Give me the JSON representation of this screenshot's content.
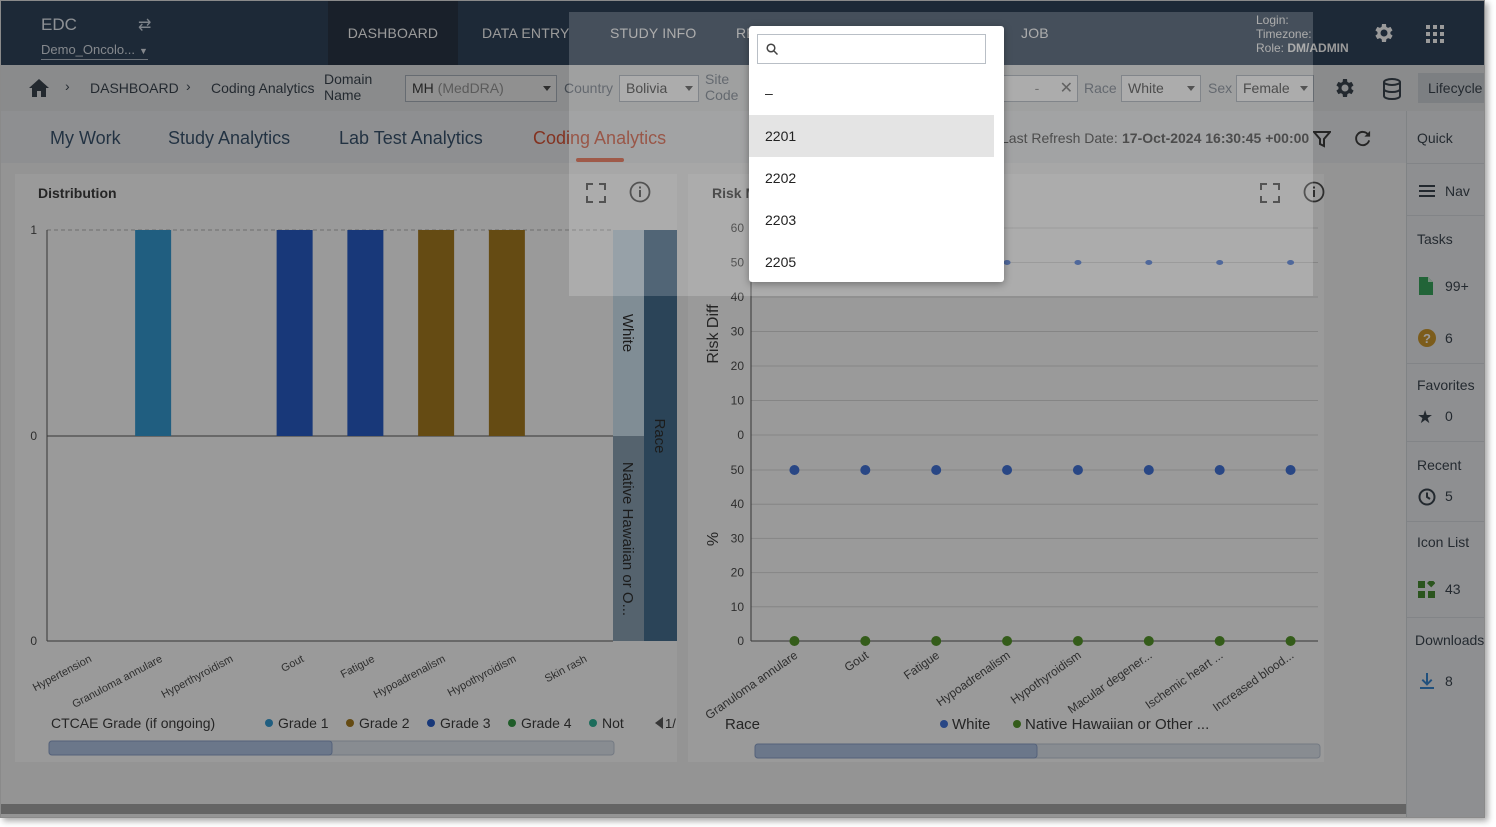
{
  "app": {
    "title": "EDC",
    "study": "Demo_Oncolo..."
  },
  "nav": {
    "tabs": [
      "DASHBOARD",
      "DATA ENTRY",
      "STUDY INFO",
      "RE",
      "JOB"
    ]
  },
  "user": {
    "login_label": "Login:",
    "timezone_label": "Timezone:",
    "role_label": "Role:",
    "role_value": "DM/ADMIN"
  },
  "breadcrumb": {
    "home": "DASHBOARD",
    "current": "Coding Analytics"
  },
  "filters": {
    "domain_label_1": "Domain",
    "domain_label_2": "Name",
    "domain_value": "MH",
    "domain_sub": "(MedDRA)",
    "country_label": "Country",
    "country_value": "Bolivia",
    "site_label_1": "Site",
    "site_label_2": "Code",
    "date_placeholder": "-",
    "race_label": "Race",
    "race_value": "White",
    "sex_label": "Sex",
    "sex_value": "Female",
    "lifecycle": "Lifecycle"
  },
  "subtabs": [
    "My Work",
    "Study Analytics",
    "Lab Test Analytics",
    "Coding Analytics"
  ],
  "refresh": {
    "label": "Last Refresh Date:",
    "value": "17-Oct-2024 16:30:45 +00:00"
  },
  "rail": {
    "quick": "Quick",
    "nav": "Nav",
    "tasks": "Tasks",
    "tasks_count": "99+",
    "help_count": "6",
    "favorites": "Favorites",
    "favorites_count": "0",
    "recent": "Recent",
    "recent_count": "5",
    "icon_list": "Icon List",
    "icon_list_count": "43",
    "downloads": "Downloads",
    "downloads_count": "8"
  },
  "dropdown": {
    "items": [
      "–",
      "2201",
      "2202",
      "2203",
      "2205"
    ],
    "selected": "2201"
  },
  "colors": {
    "grade1": "#1a8fcf",
    "grade2": "#9b6a00",
    "grade3": "#0a46c0",
    "grade4": "#178a2a",
    "not": "#12a888",
    "white": "#2a62d8",
    "nhpi": "#3f8a0e",
    "accent": "#e0431c"
  },
  "chart_data": [
    {
      "type": "bar",
      "title": "Distribution",
      "categories": [
        "Hypertension",
        "Granuloma annulare",
        "Hyperthyroidism",
        "Gout",
        "Fatigue",
        "Hypoadrenalism",
        "Hypothyroidism",
        "Skin rash"
      ],
      "series": [
        {
          "name": "Grade 1",
          "values": [
            0,
            1,
            0,
            0,
            0,
            0,
            0,
            0
          ]
        },
        {
          "name": "Grade 2",
          "values": [
            0,
            0,
            0,
            0,
            0,
            1,
            1,
            0
          ]
        },
        {
          "name": "Grade 3",
          "values": [
            0,
            0,
            0,
            1,
            1,
            0,
            0,
            0
          ]
        },
        {
          "name": "Grade 4",
          "values": [
            0,
            0,
            0,
            0,
            0,
            0,
            0,
            0
          ]
        },
        {
          "name": "Not",
          "values": [
            0,
            0,
            0,
            0,
            0,
            0,
            0,
            0
          ]
        }
      ],
      "upper_ticks": [
        "1",
        "0"
      ],
      "lower_ticks": [
        "0"
      ],
      "legend_title": "CTCAE Grade (if ongoing)",
      "legend_page": "1/",
      "facet_title": "Race",
      "facets": [
        "White",
        "Native Hawaiian or O..."
      ]
    },
    {
      "type": "scatter",
      "title": "Risk M",
      "categories": [
        "Granuloma annulare",
        "Gout",
        "Fatigue",
        "Hypoadrenalism",
        "Hypothyroidism",
        "Macular degener...",
        "Ischemic heart ...",
        "Increased blood..."
      ],
      "upper": {
        "ylabel": "Risk Diff",
        "ticks": [
          60,
          50,
          40,
          30,
          20,
          10,
          0
        ],
        "ylim": [
          0,
          60
        ],
        "values": [
          50,
          50,
          50,
          50,
          50,
          50,
          50,
          50
        ]
      },
      "lower": {
        "ylabel": "%",
        "ticks": [
          50,
          40,
          30,
          20,
          10,
          0
        ],
        "ylim": [
          0,
          50
        ],
        "series": [
          {
            "name": "White",
            "values": [
              50,
              50,
              50,
              50,
              50,
              50,
              50,
              50
            ]
          },
          {
            "name": "Native Hawaiian or Other ...",
            "values": [
              0,
              0,
              0,
              0,
              0,
              0,
              0,
              0
            ]
          }
        ]
      },
      "legend_title": "Race"
    }
  ]
}
